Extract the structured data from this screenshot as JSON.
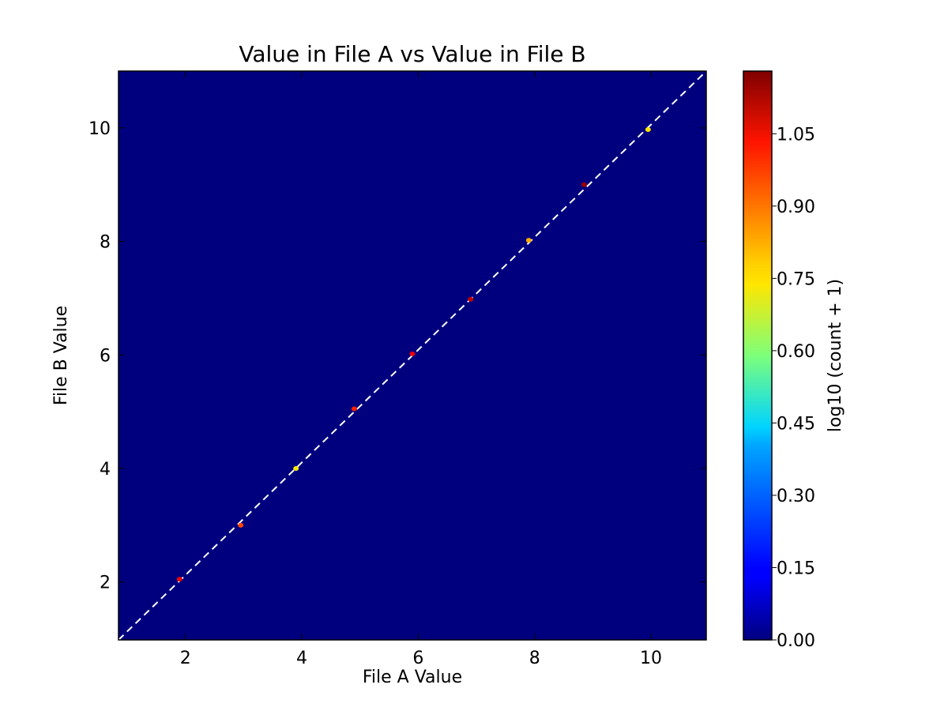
{
  "chart_data": {
    "type": "heatmap",
    "title": "Value in File A vs Value in File B",
    "xlabel": "File A Value",
    "ylabel": "File B Value",
    "xlim": [
      0.85,
      10.95
    ],
    "ylim": [
      0.98,
      11.0
    ],
    "xticks": [
      2,
      4,
      6,
      8,
      10
    ],
    "yticks": [
      2,
      4,
      6,
      8,
      10
    ],
    "background_color": "#00007f",
    "reference_line": {
      "style": "dashed",
      "color": "#ffffff",
      "from": [
        0.85,
        0.98
      ],
      "to": [
        10.95,
        11.0
      ]
    },
    "points": [
      {
        "x": 1.9,
        "y": 2.05,
        "value": 1.08,
        "color": "#e8000b"
      },
      {
        "x": 2.95,
        "y": 3.0,
        "value": 0.98,
        "color": "#ff4500"
      },
      {
        "x": 3.9,
        "y": 4.0,
        "value": 0.78,
        "color": "#ffe600"
      },
      {
        "x": 4.9,
        "y": 5.05,
        "value": 1.04,
        "color": "#ff2000"
      },
      {
        "x": 5.9,
        "y": 6.02,
        "value": 1.08,
        "color": "#e8000b"
      },
      {
        "x": 6.9,
        "y": 6.98,
        "value": 1.1,
        "color": "#c40000"
      },
      {
        "x": 7.9,
        "y": 8.02,
        "value": 0.86,
        "color": "#ffaa00"
      },
      {
        "x": 8.85,
        "y": 9.0,
        "value": 1.15,
        "color": "#990000"
      },
      {
        "x": 9.95,
        "y": 9.97,
        "value": 0.78,
        "color": "#ffe600"
      }
    ],
    "colorbar": {
      "label": "log10 (count + 1)",
      "range": [
        0.0,
        1.18
      ],
      "ticks": [
        "0.00",
        "0.15",
        "0.30",
        "0.45",
        "0.60",
        "0.75",
        "0.90",
        "1.05"
      ],
      "colormap": "jet"
    }
  }
}
